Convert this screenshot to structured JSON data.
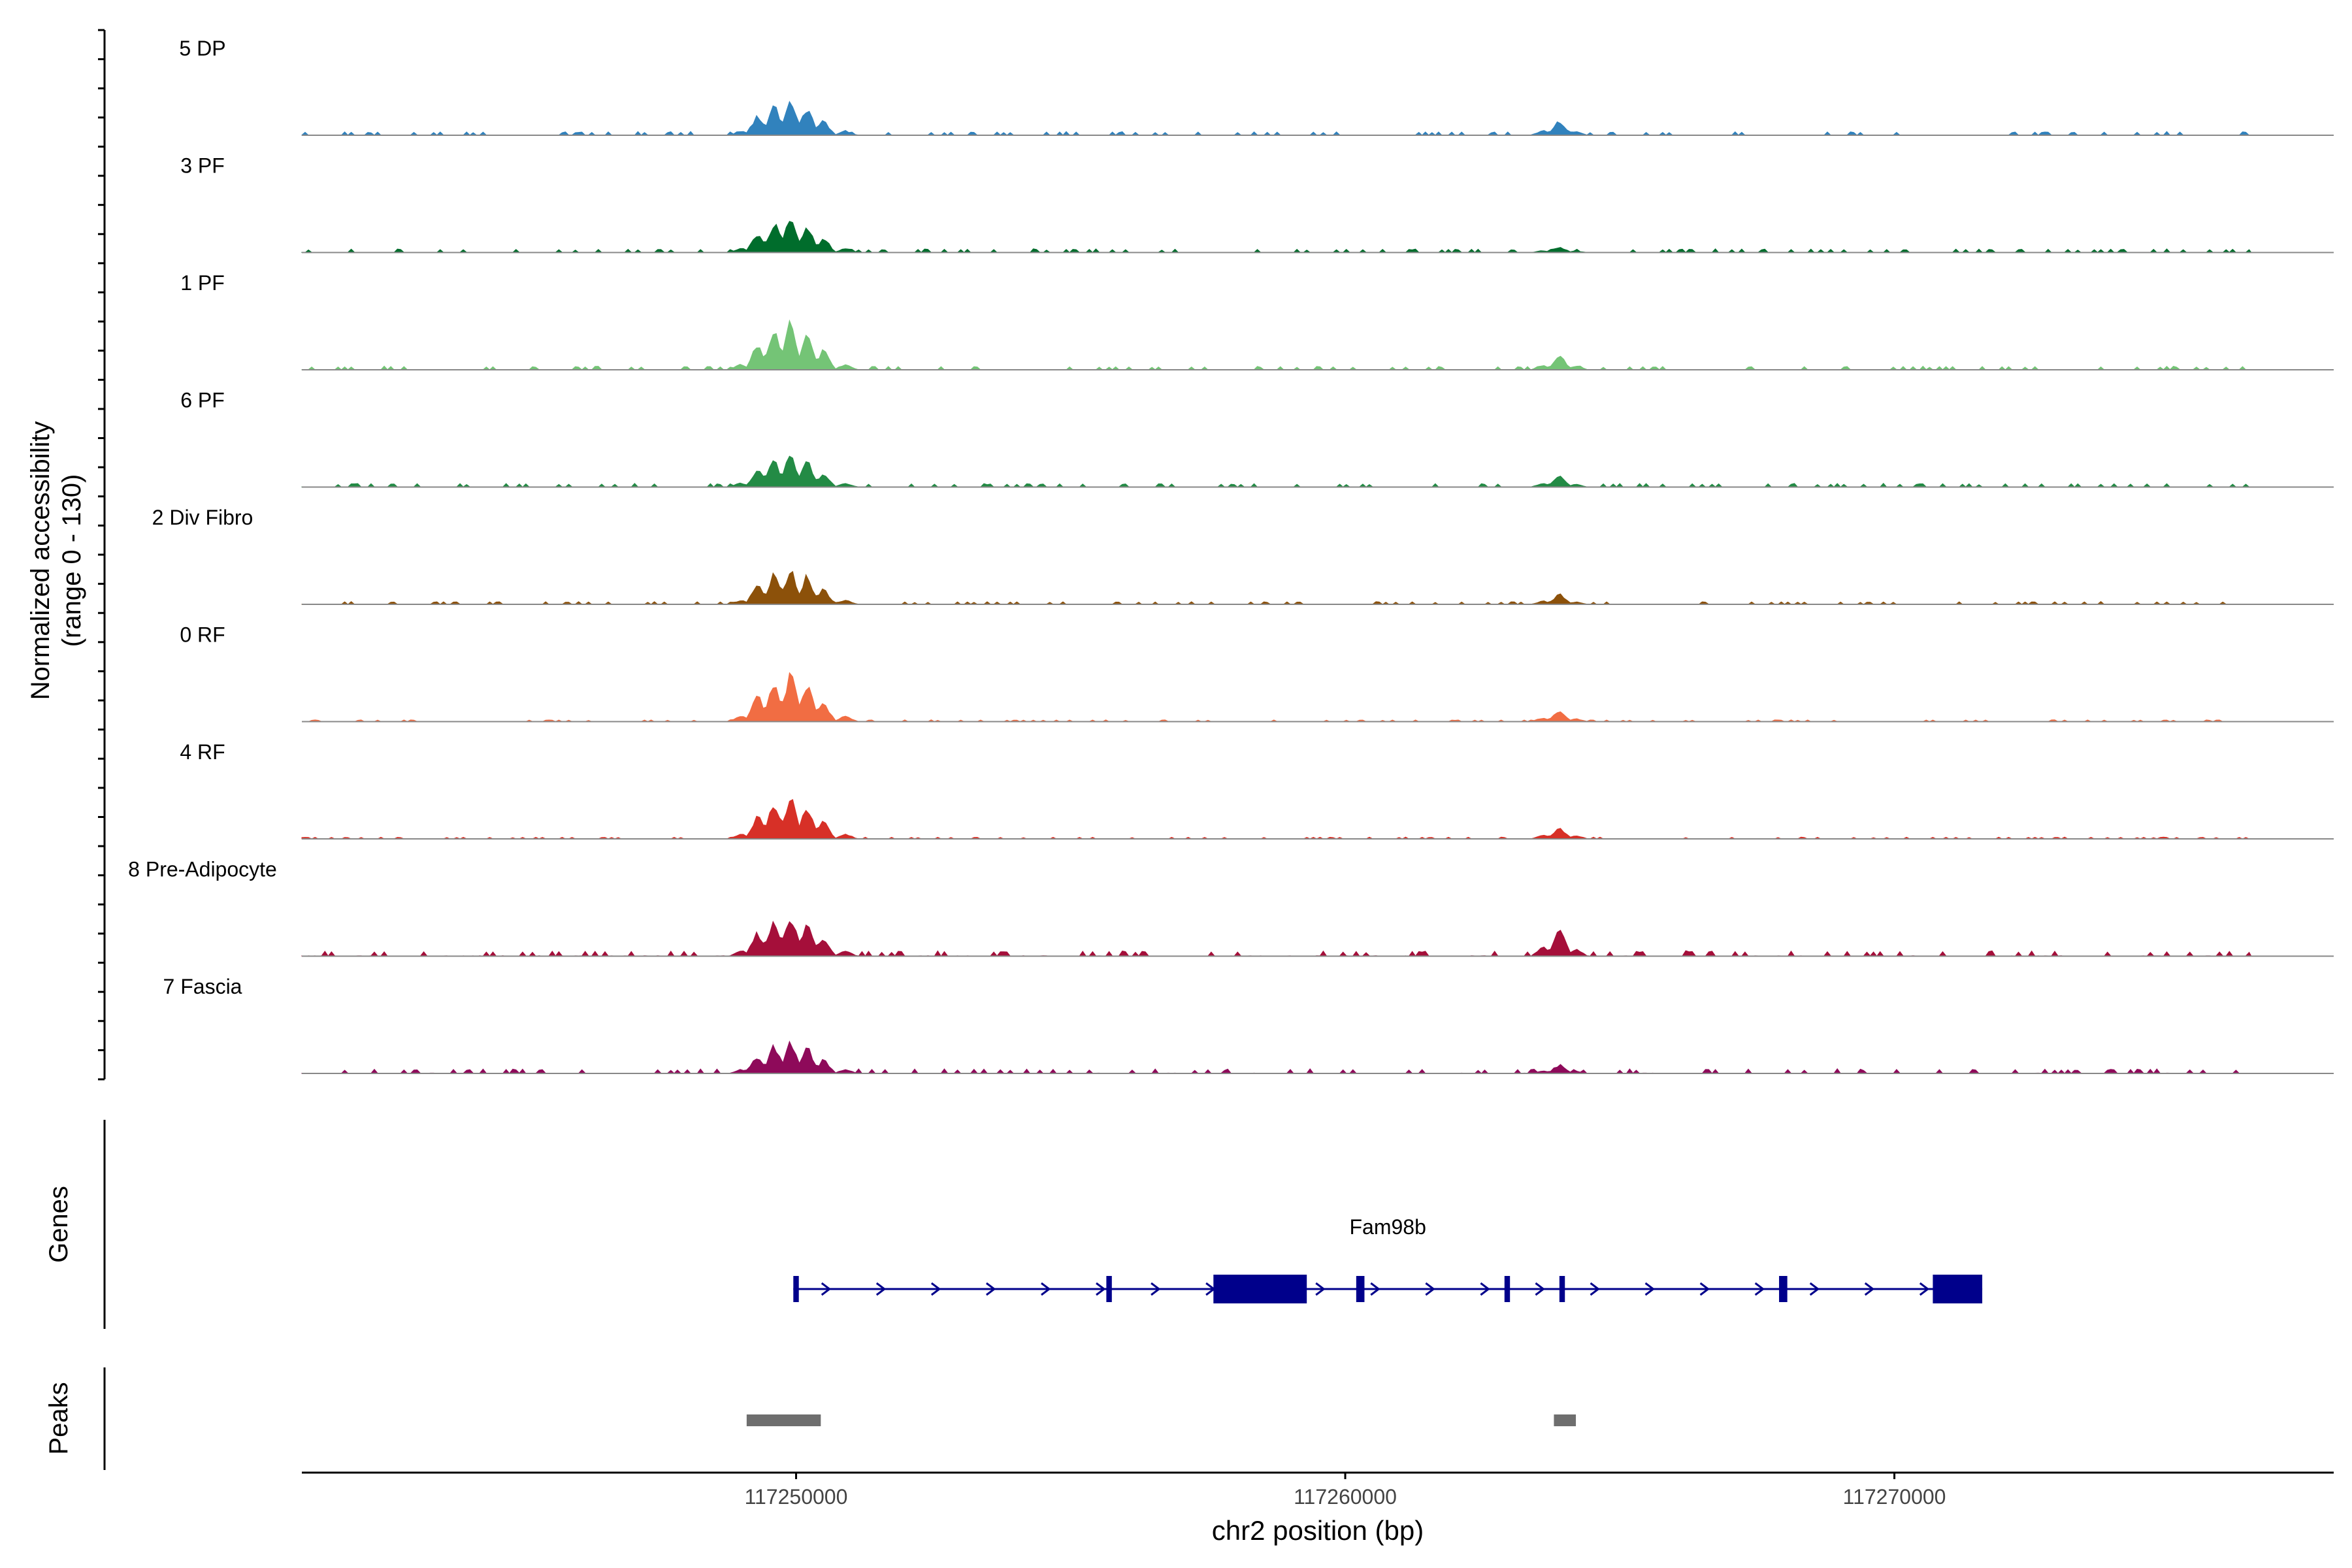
{
  "chart_data": {
    "type": "area",
    "title": "",
    "xlabel": "chr2 position (bp)",
    "ylabel": "Normalized accessibility",
    "ylabel_range": "(range 0 - 130)",
    "xlim": [
      117241000,
      117278000
    ],
    "x_ticks": [
      117250000,
      117260000,
      117270000
    ],
    "x_tick_labels": [
      "117250000",
      "117260000",
      "117270000"
    ],
    "ylim": [
      0,
      130
    ],
    "track_profile": {
      "positions": [
        117249000,
        117249300,
        117249600,
        117249900,
        117250200,
        117250500,
        117250900,
        117263600,
        117263900,
        117264200
      ],
      "relative_heights": [
        0.12,
        0.55,
        0.85,
        1.0,
        0.8,
        0.4,
        0.12,
        0.1,
        0.3,
        0.08
      ]
    },
    "series": [
      {
        "name": "5 DP",
        "color": "#3182bd",
        "peak_height": 60,
        "second_peak_height": 25,
        "background": 4
      },
      {
        "name": "3 PF",
        "color": "#006d2c",
        "peak_height": 62,
        "second_peak_height": 10,
        "background": 4
      },
      {
        "name": "1 PF",
        "color": "#74c476",
        "peak_height": 82,
        "second_peak_height": 25,
        "background": 4
      },
      {
        "name": "6 PF",
        "color": "#238b45",
        "peak_height": 57,
        "second_peak_height": 19,
        "background": 4
      },
      {
        "name": "2 Div Fibro",
        "color": "#8c510a",
        "peak_height": 63,
        "second_peak_height": 17,
        "background": 3
      },
      {
        "name": "0 RF",
        "color": "#f16d43",
        "peak_height": 84,
        "second_peak_height": 20,
        "background": 2
      },
      {
        "name": "4 RF",
        "color": "#d73027",
        "peak_height": 72,
        "second_peak_height": 20,
        "background": 2
      },
      {
        "name": "8 Pre-Adipocyte",
        "color": "#a50f3a",
        "peak_height": 74,
        "second_peak_height": 46,
        "background": 6
      },
      {
        "name": "7 Fascia",
        "color": "#8e0a5a",
        "peak_height": 57,
        "second_peak_height": 15,
        "background": 5
      }
    ],
    "genes_track": {
      "label": "Genes",
      "gene_name": "Fam98b",
      "color": "#00008b",
      "strand": "+",
      "start": 117249950,
      "end": 117271600,
      "exons": [
        [
          117249950,
          117250050
        ],
        [
          117255650,
          117255750
        ],
        [
          117257600,
          117259300
        ],
        [
          117260200,
          117260350
        ],
        [
          117262900,
          117263000
        ],
        [
          117263900,
          117264000
        ],
        [
          117267900,
          117268050
        ],
        [
          117270700,
          117271600
        ]
      ]
    },
    "peaks_track": {
      "label": "Peaks",
      "color": "#6e6e6e",
      "peaks": [
        [
          117249100,
          117250450
        ],
        [
          117263800,
          117264200
        ]
      ]
    }
  }
}
